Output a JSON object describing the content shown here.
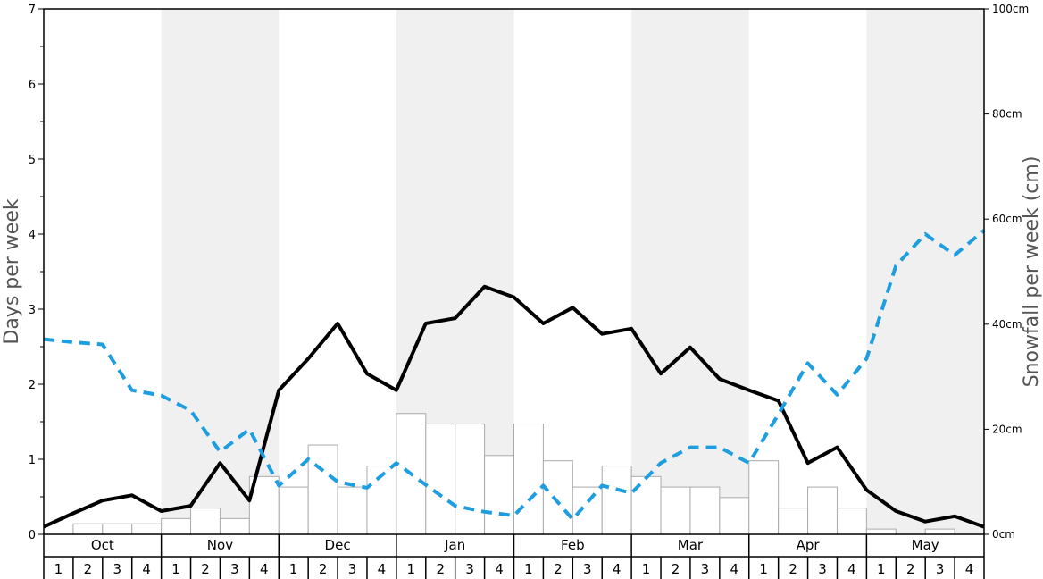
{
  "chart_data": {
    "type": "bar",
    "title": "",
    "ylabel_left": "Days per week",
    "ylabel_right": "Snowfall per week (cm)",
    "ylim_left": [
      0,
      7
    ],
    "ylim_right": [
      0,
      100
    ],
    "left_ticks": [
      "0",
      "1",
      "2",
      "3",
      "4",
      "5",
      "6",
      "7"
    ],
    "right_ticks": [
      "0cm",
      "20cm",
      "40cm",
      "60cm",
      "80cm",
      "100cm"
    ],
    "months": [
      "Oct",
      "Nov",
      "Dec",
      "Jan",
      "Feb",
      "Mar",
      "Apr",
      "May"
    ],
    "weeks": [
      "1",
      "2",
      "3",
      "4"
    ],
    "shaded_months": [
      false,
      true,
      false,
      true,
      false,
      true,
      false,
      true
    ],
    "colors": {
      "bars": "#ffffff",
      "bar_stroke": "#aaaaaa",
      "solid_line": "#000000",
      "dashed_line": "#1e9ee0",
      "shade": "#f0f0f0"
    },
    "series": [
      {
        "axis": "right",
        "kind": "bar",
        "values": [
          0,
          2,
          2,
          2,
          3,
          5,
          3,
          11,
          9,
          17,
          9,
          13,
          23,
          21,
          21,
          15,
          21,
          14,
          9,
          13,
          11,
          9,
          9,
          7,
          14,
          5,
          9,
          5,
          1,
          0,
          1,
          0
        ]
      },
      {
        "axis": "left",
        "kind": "line",
        "style": "solid",
        "values": [
          0.1,
          0.28,
          0.45,
          0.52,
          0.31,
          0.38,
          0.95,
          0.45,
          1.92,
          2.34,
          2.81,
          2.14,
          1.92,
          2.81,
          2.88,
          3.3,
          3.16,
          2.81,
          3.02,
          2.67,
          2.74,
          2.14,
          2.49,
          2.07,
          1.92,
          1.78,
          0.95,
          1.16,
          0.59,
          0.31,
          0.17,
          0.24,
          0.1
        ]
      },
      {
        "axis": "left",
        "kind": "line",
        "style": "dashed",
        "values": [
          2.6,
          2.56,
          2.53,
          1.92,
          1.85,
          1.65,
          1.1,
          1.4,
          0.65,
          1.0,
          0.7,
          0.62,
          0.95,
          0.66,
          0.38,
          0.3,
          0.25,
          0.65,
          0.2,
          0.65,
          0.55,
          0.95,
          1.16,
          1.16,
          0.95,
          1.6,
          2.28,
          1.86,
          2.34,
          3.58,
          4.0,
          3.72,
          4.05
        ]
      }
    ]
  }
}
